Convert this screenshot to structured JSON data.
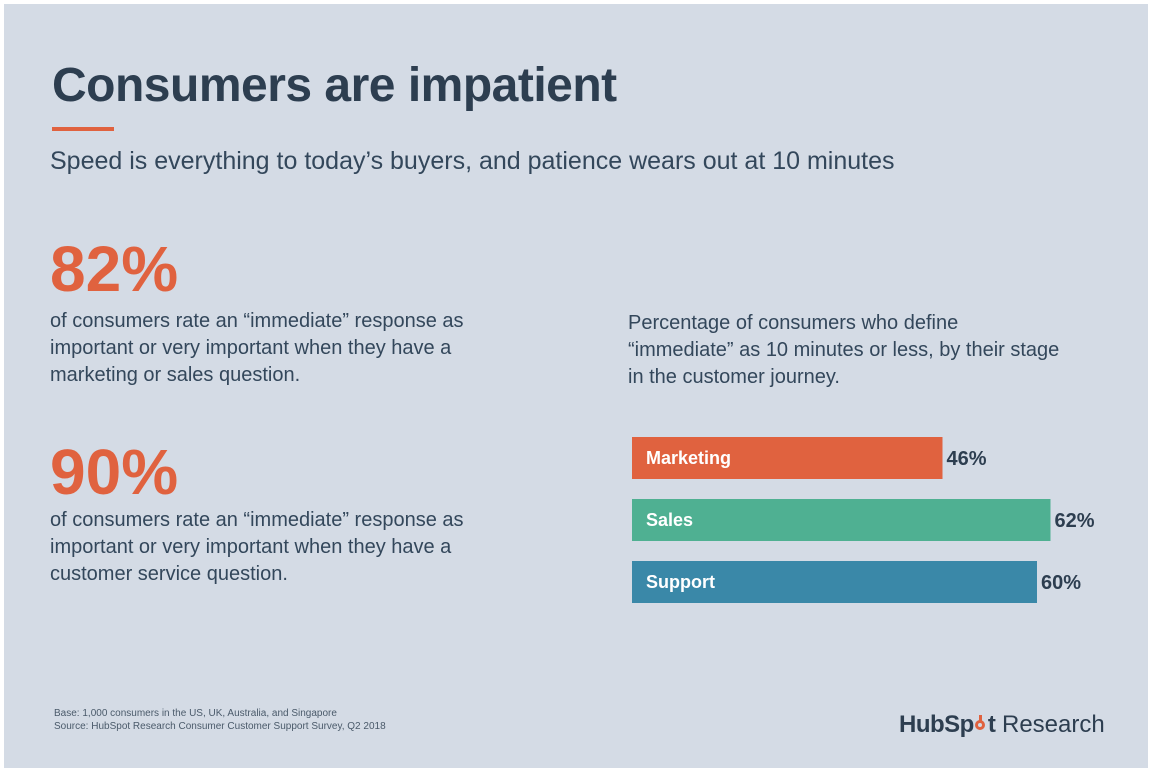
{
  "header": {
    "title": "Consumers are impatient",
    "subtitle": "Speed is everything to today’s buyers, and patience wears out at 10 minutes"
  },
  "stats": [
    {
      "value": "82%",
      "description": "of consumers rate an “immediate” response as important or very important when they have a marketing or sales question."
    },
    {
      "value": "90%",
      "description": "of consumers rate an “immediate” response as important or very important when they have a customer service question."
    }
  ],
  "colors": {
    "background": "#d4dbe5",
    "accent": "#e0623f",
    "title": "#2d3e50",
    "marketing": "#e0623f",
    "sales": "#4fb092",
    "support": "#3a88a8"
  },
  "chart_data": {
    "type": "bar",
    "orientation": "horizontal",
    "title": "Percentage of consumers who define “immediate” as 10 minutes or less, by their stage in the customer journey.",
    "categories": [
      "Marketing",
      "Sales",
      "Support"
    ],
    "values": [
      46,
      62,
      60
    ],
    "value_labels": [
      "46%",
      "62%",
      "60%"
    ],
    "colors": [
      "#e0623f",
      "#4fb092",
      "#3a88a8"
    ],
    "xlim": [
      0,
      100
    ],
    "grid": false,
    "legend": "none"
  },
  "footer": {
    "base": "Base: 1,000 consumers in the US, UK, Australia, and Singapore",
    "source": "Source: HubSpot Research Consumer Customer Support Survey, Q2 2018",
    "logo_brand_start": "HubSp",
    "logo_brand_end": "t",
    "logo_suffix": "Research"
  }
}
